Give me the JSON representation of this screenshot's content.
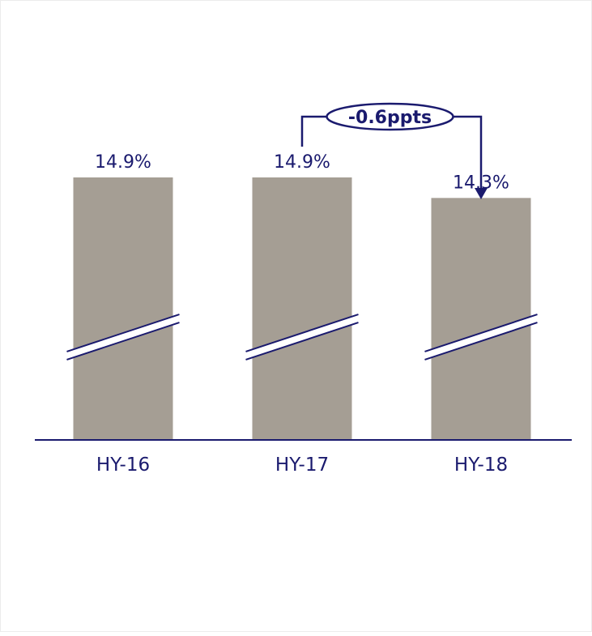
{
  "chart_data": {
    "type": "bar",
    "categories": [
      "HY-16",
      "HY-17",
      "HY-18"
    ],
    "values": [
      14.9,
      14.9,
      14.3
    ],
    "value_labels": [
      "14.9%",
      "14.9%",
      "14.3%"
    ],
    "axis_break": true,
    "grid": false,
    "annotation": {
      "label": "-0.6ppts",
      "from_category": "HY-17",
      "to_category": "HY-18"
    },
    "colors": {
      "bar": "#a59e94",
      "navy": "#1a1a6e",
      "background": "#ffffff"
    }
  }
}
